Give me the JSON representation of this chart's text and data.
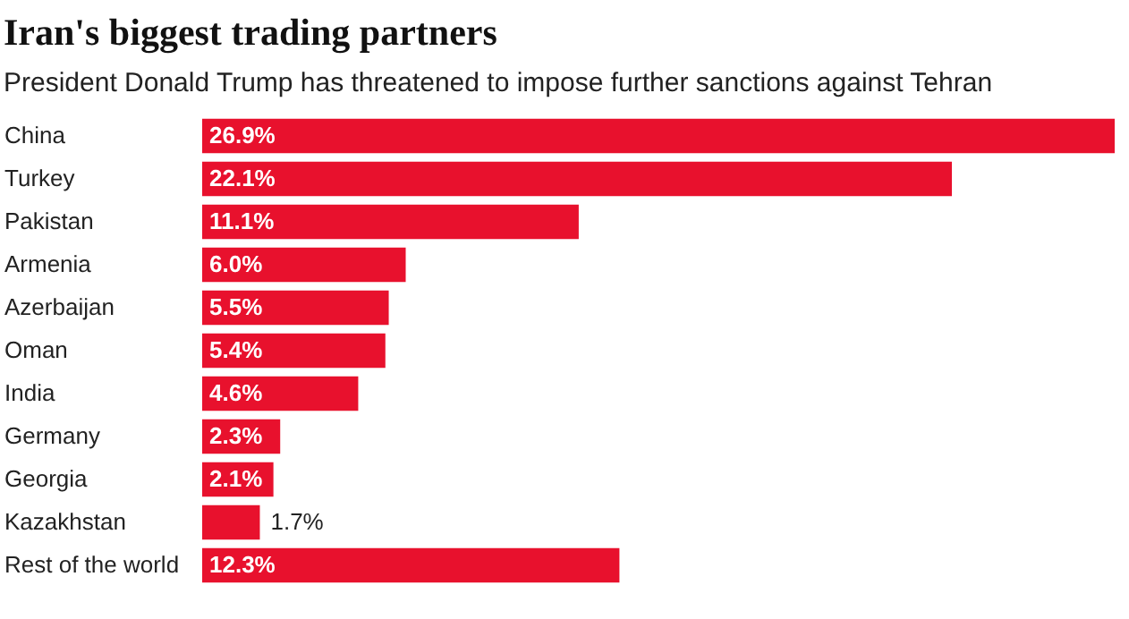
{
  "chart_data": {
    "type": "bar",
    "orientation": "horizontal",
    "title": "Iran's biggest trading partners",
    "subtitle": "President Donald Trump has threatened to impose further sanctions against Tehran",
    "categories": [
      "China",
      "Turkey",
      "Pakistan",
      "Armenia",
      "Azerbaijan",
      "Oman",
      "India",
      "Germany",
      "Georgia",
      "Kazakhstan",
      "Rest of the world"
    ],
    "values": [
      26.9,
      22.1,
      11.1,
      6.0,
      5.5,
      5.4,
      4.6,
      2.3,
      2.1,
      1.7,
      12.3
    ],
    "value_labels": [
      "26.9%",
      "22.1%",
      "11.1%",
      "6.0%",
      "5.5%",
      "5.4%",
      "4.6%",
      "2.3%",
      "2.1%",
      "1.7%",
      "12.3%"
    ],
    "color": "#e8112d",
    "grid": false
  }
}
